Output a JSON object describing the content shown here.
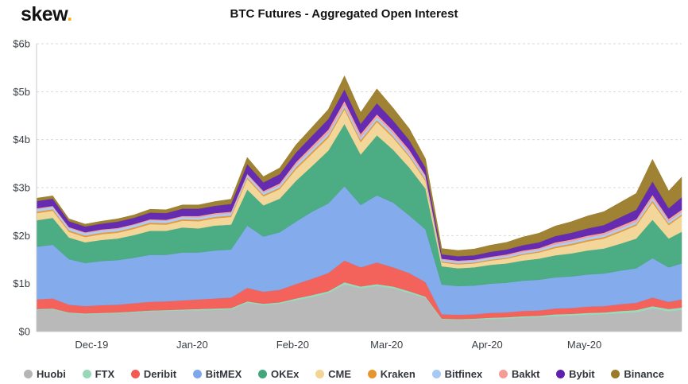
{
  "logo": {
    "brand": "skew",
    "dot": "."
  },
  "header": {
    "title": "BTC Futures - Aggregated Open Interest"
  },
  "chart_data": {
    "type": "area",
    "stacked": true,
    "title": "BTC Futures - Aggregated Open Interest",
    "unit": "USD billions",
    "ylim": [
      0,
      6
    ],
    "grid": {
      "style": "dashed",
      "color": "#d9d9d9"
    },
    "legend_position": "bottom",
    "y_ticks": [
      {
        "value": 0,
        "label": "$0"
      },
      {
        "value": 1,
        "label": "$1b"
      },
      {
        "value": 2,
        "label": "$2b"
      },
      {
        "value": 3,
        "label": "$3b"
      },
      {
        "value": 4,
        "label": "$4b"
      },
      {
        "value": 5,
        "label": "$5b"
      },
      {
        "value": 6,
        "label": "$6b"
      }
    ],
    "x_ticks": [
      {
        "date": "2019-12-01",
        "label": "Dec-19"
      },
      {
        "date": "2020-01-01",
        "label": "Jan-20"
      },
      {
        "date": "2020-02-01",
        "label": "Feb-20"
      },
      {
        "date": "2020-03-01",
        "label": "Mar-20"
      },
      {
        "date": "2020-04-01",
        "label": "Apr-20"
      },
      {
        "date": "2020-05-01",
        "label": "May-20"
      }
    ],
    "x": [
      "2019-11-14",
      "2019-11-19",
      "2019-11-24",
      "2019-11-29",
      "2019-12-04",
      "2019-12-09",
      "2019-12-14",
      "2019-12-19",
      "2019-12-24",
      "2019-12-29",
      "2020-01-03",
      "2020-01-08",
      "2020-01-13",
      "2020-01-18",
      "2020-01-23",
      "2020-01-28",
      "2020-02-02",
      "2020-02-07",
      "2020-02-12",
      "2020-02-17",
      "2020-02-22",
      "2020-02-27",
      "2020-03-03",
      "2020-03-08",
      "2020-03-13",
      "2020-03-18",
      "2020-03-23",
      "2020-03-28",
      "2020-04-02",
      "2020-04-07",
      "2020-04-12",
      "2020-04-17",
      "2020-04-22",
      "2020-04-27",
      "2020-05-02",
      "2020-05-07",
      "2020-05-12",
      "2020-05-17",
      "2020-05-22",
      "2020-05-27",
      "2020-05-31"
    ],
    "series": [
      {
        "name": "Huobi",
        "color": "#b5b5b5",
        "values": [
          0.45,
          0.46,
          0.38,
          0.36,
          0.37,
          0.38,
          0.4,
          0.42,
          0.43,
          0.44,
          0.44,
          0.45,
          0.46,
          0.6,
          0.55,
          0.58,
          0.65,
          0.72,
          0.8,
          0.98,
          0.9,
          0.95,
          0.9,
          0.8,
          0.7,
          0.25,
          0.24,
          0.25,
          0.26,
          0.27,
          0.29,
          0.3,
          0.32,
          0.33,
          0.35,
          0.36,
          0.38,
          0.4,
          0.48,
          0.42,
          0.45
        ]
      },
      {
        "name": "FTX",
        "color": "#96d8b8",
        "values": [
          0.02,
          0.02,
          0.02,
          0.02,
          0.02,
          0.02,
          0.02,
          0.02,
          0.02,
          0.02,
          0.03,
          0.03,
          0.03,
          0.03,
          0.03,
          0.03,
          0.04,
          0.04,
          0.04,
          0.05,
          0.04,
          0.04,
          0.04,
          0.04,
          0.03,
          0.02,
          0.02,
          0.02,
          0.03,
          0.03,
          0.03,
          0.03,
          0.04,
          0.04,
          0.04,
          0.04,
          0.05,
          0.05,
          0.05,
          0.05,
          0.05
        ]
      },
      {
        "name": "Deribit",
        "color": "#f25a52",
        "values": [
          0.2,
          0.21,
          0.16,
          0.15,
          0.16,
          0.16,
          0.17,
          0.18,
          0.18,
          0.19,
          0.2,
          0.21,
          0.22,
          0.28,
          0.25,
          0.26,
          0.3,
          0.34,
          0.38,
          0.45,
          0.4,
          0.45,
          0.4,
          0.38,
          0.3,
          0.09,
          0.09,
          0.09,
          0.1,
          0.1,
          0.11,
          0.11,
          0.12,
          0.12,
          0.13,
          0.13,
          0.14,
          0.15,
          0.18,
          0.15,
          0.17
        ]
      },
      {
        "name": "BitMEX",
        "color": "#7da7ea",
        "values": [
          1.1,
          1.12,
          0.95,
          0.9,
          0.92,
          0.93,
          0.95,
          0.98,
          0.97,
          1.0,
          0.98,
          1.0,
          1.0,
          1.3,
          1.15,
          1.2,
          1.3,
          1.4,
          1.45,
          1.55,
          1.3,
          1.4,
          1.35,
          1.2,
          1.1,
          0.62,
          0.6,
          0.6,
          0.61,
          0.62,
          0.63,
          0.64,
          0.65,
          0.66,
          0.67,
          0.68,
          0.7,
          0.72,
          0.82,
          0.72,
          0.75
        ]
      },
      {
        "name": "OKEx",
        "color": "#42a87c",
        "values": [
          0.55,
          0.56,
          0.45,
          0.43,
          0.44,
          0.45,
          0.47,
          0.5,
          0.5,
          0.52,
          0.5,
          0.52,
          0.52,
          0.75,
          0.65,
          0.7,
          0.85,
          0.95,
          1.1,
          1.3,
          1.05,
          1.25,
          1.1,
          1.0,
          0.85,
          0.38,
          0.37,
          0.38,
          0.39,
          0.4,
          0.42,
          0.44,
          0.46,
          0.48,
          0.5,
          0.52,
          0.56,
          0.62,
          0.8,
          0.6,
          0.66
        ]
      },
      {
        "name": "CME",
        "color": "#f2d493",
        "values": [
          0.15,
          0.15,
          0.12,
          0.11,
          0.12,
          0.12,
          0.13,
          0.14,
          0.13,
          0.14,
          0.15,
          0.15,
          0.16,
          0.22,
          0.19,
          0.2,
          0.24,
          0.26,
          0.27,
          0.3,
          0.26,
          0.28,
          0.25,
          0.22,
          0.16,
          0.08,
          0.08,
          0.08,
          0.09,
          0.1,
          0.12,
          0.13,
          0.15,
          0.17,
          0.19,
          0.21,
          0.24,
          0.27,
          0.36,
          0.28,
          0.33
        ]
      },
      {
        "name": "Kraken",
        "color": "#e6952f",
        "values": [
          0.03,
          0.03,
          0.03,
          0.03,
          0.03,
          0.03,
          0.03,
          0.03,
          0.03,
          0.03,
          0.03,
          0.03,
          0.03,
          0.03,
          0.03,
          0.03,
          0.04,
          0.04,
          0.04,
          0.04,
          0.04,
          0.04,
          0.03,
          0.03,
          0.03,
          0.02,
          0.02,
          0.02,
          0.02,
          0.02,
          0.02,
          0.02,
          0.03,
          0.03,
          0.03,
          0.03,
          0.03,
          0.03,
          0.04,
          0.03,
          0.03
        ]
      },
      {
        "name": "Bitfinex",
        "color": "#a9c9f5",
        "values": [
          0.05,
          0.05,
          0.05,
          0.05,
          0.05,
          0.05,
          0.05,
          0.05,
          0.05,
          0.05,
          0.05,
          0.05,
          0.05,
          0.05,
          0.05,
          0.05,
          0.06,
          0.06,
          0.06,
          0.06,
          0.06,
          0.06,
          0.06,
          0.06,
          0.05,
          0.04,
          0.04,
          0.04,
          0.04,
          0.04,
          0.04,
          0.04,
          0.05,
          0.05,
          0.05,
          0.05,
          0.05,
          0.05,
          0.06,
          0.05,
          0.05
        ]
      },
      {
        "name": "Bakkt",
        "color": "#f59c94",
        "values": [
          0.02,
          0.02,
          0.02,
          0.02,
          0.02,
          0.02,
          0.02,
          0.02,
          0.02,
          0.02,
          0.03,
          0.03,
          0.03,
          0.03,
          0.03,
          0.04,
          0.05,
          0.06,
          0.07,
          0.08,
          0.07,
          0.06,
          0.06,
          0.06,
          0.04,
          0.02,
          0.02,
          0.02,
          0.02,
          0.03,
          0.03,
          0.03,
          0.04,
          0.04,
          0.04,
          0.04,
          0.05,
          0.05,
          0.06,
          0.05,
          0.05
        ]
      },
      {
        "name": "Bybit",
        "color": "#5d21ad",
        "values": [
          0.15,
          0.15,
          0.12,
          0.12,
          0.12,
          0.13,
          0.13,
          0.14,
          0.14,
          0.15,
          0.15,
          0.15,
          0.16,
          0.2,
          0.18,
          0.19,
          0.2,
          0.21,
          0.22,
          0.24,
          0.21,
          0.23,
          0.21,
          0.2,
          0.16,
          0.09,
          0.09,
          0.09,
          0.1,
          0.1,
          0.11,
          0.12,
          0.13,
          0.14,
          0.15,
          0.16,
          0.18,
          0.2,
          0.28,
          0.22,
          0.26
        ]
      },
      {
        "name": "Binance",
        "color": "#9a7b28",
        "values": [
          0.06,
          0.06,
          0.05,
          0.05,
          0.05,
          0.06,
          0.06,
          0.07,
          0.07,
          0.08,
          0.08,
          0.09,
          0.1,
          0.14,
          0.12,
          0.13,
          0.16,
          0.18,
          0.2,
          0.28,
          0.24,
          0.3,
          0.26,
          0.24,
          0.18,
          0.12,
          0.12,
          0.13,
          0.14,
          0.15,
          0.17,
          0.19,
          0.21,
          0.23,
          0.26,
          0.28,
          0.31,
          0.34,
          0.46,
          0.36,
          0.42
        ]
      }
    ]
  }
}
